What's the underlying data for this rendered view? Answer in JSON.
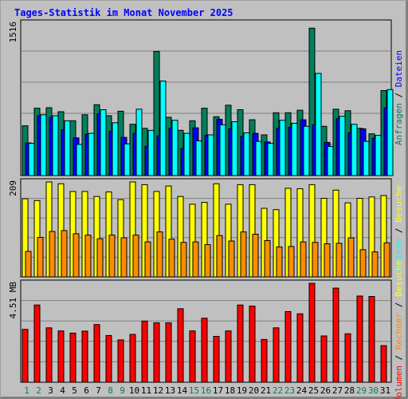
{
  "chart_data": [
    {
      "type": "bar",
      "title": "Tages-Statistik im Monat November 2025",
      "ymax_label": "1516",
      "ymax": 1516,
      "right_label": [
        {
          "text": "Anfragen",
          "color": "#00805c"
        },
        {
          "text": " / ",
          "color": "#000000"
        },
        {
          "text": "Dateien",
          "color": "#0000ff"
        }
      ],
      "categories": [
        "1",
        "2",
        "3",
        "4",
        "5",
        "6",
        "7",
        "8",
        "9",
        "10",
        "11",
        "12",
        "13",
        "14",
        "15",
        "16",
        "17",
        "18",
        "19",
        "20",
        "21",
        "22",
        "23",
        "24",
        "25",
        "26",
        "27",
        "28",
        "29",
        "30",
        "31"
      ],
      "weekend_days": [
        "1",
        "2",
        "8",
        "9",
        "15",
        "16",
        "22",
        "23",
        "29",
        "30"
      ],
      "series": [
        {
          "name": "Anfragen",
          "color": "#00805c",
          "values": [
            495,
            670,
            675,
            635,
            545,
            605,
            705,
            595,
            640,
            510,
            470,
            1235,
            580,
            450,
            545,
            670,
            585,
            700,
            655,
            555,
            405,
            625,
            625,
            650,
            1466,
            490,
            660,
            645,
            470,
            415,
            845
          ]
        },
        {
          "name": "Dateien",
          "color": "#0000ff",
          "values": [
            325,
            595,
            580,
            455,
            375,
            410,
            615,
            440,
            380,
            420,
            290,
            395,
            470,
            270,
            475,
            400,
            560,
            465,
            390,
            420,
            335,
            470,
            480,
            555,
            505,
            330,
            565,
            425,
            465,
            370,
            675
          ]
        },
        {
          "name": "Seiten",
          "color": "#00ffff",
          "values": [
            320,
            605,
            595,
            545,
            310,
            420,
            655,
            525,
            315,
            660,
            450,
            940,
            550,
            420,
            345,
            405,
            505,
            535,
            425,
            340,
            320,
            550,
            520,
            490,
            1016,
            290,
            590,
            510,
            340,
            400,
            855
          ]
        }
      ]
    },
    {
      "type": "bar",
      "ymax_label": "209",
      "ymax": 209,
      "right_label": [
        {
          "text": "Seiten",
          "color": "#00ffff"
        },
        {
          "text": " / ",
          "color": "#000000"
        },
        {
          "text": "Besuche",
          "color": "#ffff00"
        }
      ],
      "series": [
        {
          "name": "Besuche",
          "color": "#ffff00",
          "values": [
            172,
            168,
            209,
            205,
            188,
            188,
            177,
            187,
            170,
            209,
            203,
            188,
            200,
            177,
            160,
            164,
            205,
            160,
            203,
            203,
            151,
            148,
            195,
            194,
            203,
            173,
            191,
            163,
            173,
            176,
            179
          ]
        },
        {
          "name": "Seiten",
          "color": "#ff8c00",
          "values": [
            56,
            87,
            100,
            102,
            95,
            92,
            84,
            92,
            86,
            92,
            77,
            99,
            83,
            76,
            77,
            71,
            91,
            79,
            99,
            94,
            80,
            66,
            67,
            77,
            76,
            73,
            74,
            86,
            60,
            55,
            75
          ]
        }
      ]
    },
    {
      "type": "bar",
      "ymax_label": "4.51 MB",
      "ymax": 4.51,
      "right_label": [
        {
          "text": "Volumen",
          "color": "#ff0000"
        },
        {
          "text": " / ",
          "color": "#000000"
        },
        {
          "text": "Rechner",
          "color": "#ff8c00"
        },
        {
          "text": " / ",
          "color": "#000000"
        },
        {
          "text": "Besuche",
          "color": "#ffff00"
        }
      ],
      "series": [
        {
          "name": "Volumen",
          "color": "#ff0000",
          "values": [
            2.41,
            3.52,
            2.48,
            2.34,
            2.24,
            2.33,
            2.63,
            2.13,
            1.93,
            2.18,
            2.79,
            2.71,
            2.71,
            3.35,
            2.34,
            2.92,
            2.09,
            2.34,
            3.52,
            3.47,
            1.95,
            2.48,
            3.22,
            3.12,
            4.51,
            2.11,
            4.29,
            2.21,
            3.93,
            3.91,
            1.67
          ]
        }
      ]
    }
  ]
}
